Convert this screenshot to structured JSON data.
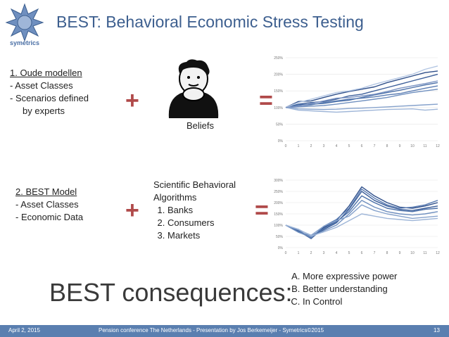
{
  "slide": {
    "title": "BEST: Behavioral Economic Stress Testing",
    "logo_text": "symetrics",
    "old": {
      "heading": "1. Oude modellen",
      "items": [
        "-   Asset Classes",
        "-   Scenarios defined",
        "     by experts"
      ]
    },
    "beliefs_label": "Beliefs",
    "best": {
      "heading": "2. BEST Model",
      "items": [
        "- Asset Classes",
        "- Economic Data"
      ]
    },
    "algo": {
      "heading1": "Scientific Behavioral",
      "heading2": "Algorithms",
      "items": [
        "Banks",
        "Consumers",
        "Markets"
      ]
    },
    "plus": "+",
    "equals": "=",
    "consequences": "BEST consequences:",
    "outcomes": [
      "More expressive power",
      "Better understanding",
      "In Control"
    ]
  },
  "footer": {
    "date": "April 2, 2015",
    "center": "Pension conference The Netherlands   -   Presentation by Jos Berkemeijer   -   Symetrics©2015",
    "page": "13"
  },
  "colors": {
    "title": "#3d5f8f",
    "operator": "#b04a4a",
    "footer": "#5a7fb0",
    "line_dark": "#2f4f8a",
    "line_light": "#a9bfe3"
  },
  "chart_data": [
    {
      "type": "line",
      "x": [
        0,
        1,
        2,
        3,
        4,
        5,
        6,
        7,
        8,
        9,
        10,
        11,
        12
      ],
      "ytick_labels": [
        "0%",
        "50%",
        "100%",
        "150%",
        "200%",
        "250%"
      ],
      "ylim": [
        0,
        250
      ],
      "series": [
        {
          "values": [
            100,
            118,
            120,
            130,
            140,
            148,
            155,
            162,
            175,
            185,
            195,
            205,
            210
          ]
        },
        {
          "values": [
            100,
            110,
            115,
            118,
            125,
            135,
            140,
            150,
            160,
            170,
            180,
            190,
            200
          ]
        },
        {
          "values": [
            100,
            108,
            110,
            112,
            118,
            122,
            130,
            138,
            145,
            152,
            160,
            168,
            175
          ]
        },
        {
          "values": [
            100,
            105,
            108,
            115,
            120,
            125,
            128,
            132,
            138,
            142,
            150,
            158,
            165
          ]
        },
        {
          "values": [
            100,
            102,
            104,
            106,
            110,
            115,
            120,
            125,
            130,
            138,
            145,
            150,
            155
          ]
        },
        {
          "values": [
            100,
            96,
            95,
            94,
            95,
            97,
            98,
            100,
            102,
            104,
            106,
            108,
            110
          ]
        },
        {
          "values": [
            100,
            92,
            90,
            88,
            86,
            88,
            90,
            92,
            94,
            95,
            96,
            92,
            95
          ]
        },
        {
          "values": [
            100,
            115,
            125,
            135,
            145,
            150,
            158,
            170,
            180,
            190,
            200,
            215,
            225
          ]
        },
        {
          "values": [
            100,
            104,
            112,
            120,
            128,
            130,
            135,
            140,
            148,
            158,
            165,
            172,
            180
          ]
        }
      ]
    },
    {
      "type": "line",
      "x": [
        0,
        1,
        2,
        3,
        4,
        5,
        6,
        7,
        8,
        9,
        10,
        11,
        12
      ],
      "ytick_labels": [
        "0%",
        "50%",
        "100%",
        "150%",
        "200%",
        "250%",
        "300%"
      ],
      "ylim": [
        0,
        300
      ],
      "series": [
        {
          "values": [
            100,
            75,
            40,
            90,
            120,
            185,
            270,
            230,
            200,
            180,
            175,
            185,
            200
          ]
        },
        {
          "values": [
            100,
            70,
            45,
            80,
            110,
            170,
            250,
            210,
            185,
            170,
            165,
            175,
            185
          ]
        },
        {
          "values": [
            100,
            72,
            50,
            85,
            115,
            160,
            230,
            200,
            175,
            165,
            160,
            170,
            175
          ]
        },
        {
          "values": [
            100,
            78,
            42,
            95,
            125,
            175,
            260,
            220,
            190,
            175,
            180,
            190,
            210
          ]
        },
        {
          "values": [
            100,
            68,
            48,
            75,
            100,
            150,
            210,
            180,
            160,
            150,
            145,
            150,
            160
          ]
        },
        {
          "values": [
            100,
            80,
            55,
            95,
            120,
            140,
            190,
            165,
            150,
            140,
            130,
            135,
            140
          ]
        },
        {
          "values": [
            100,
            82,
            52,
            70,
            90,
            120,
            150,
            140,
            130,
            125,
            120,
            125,
            130
          ]
        }
      ]
    }
  ]
}
